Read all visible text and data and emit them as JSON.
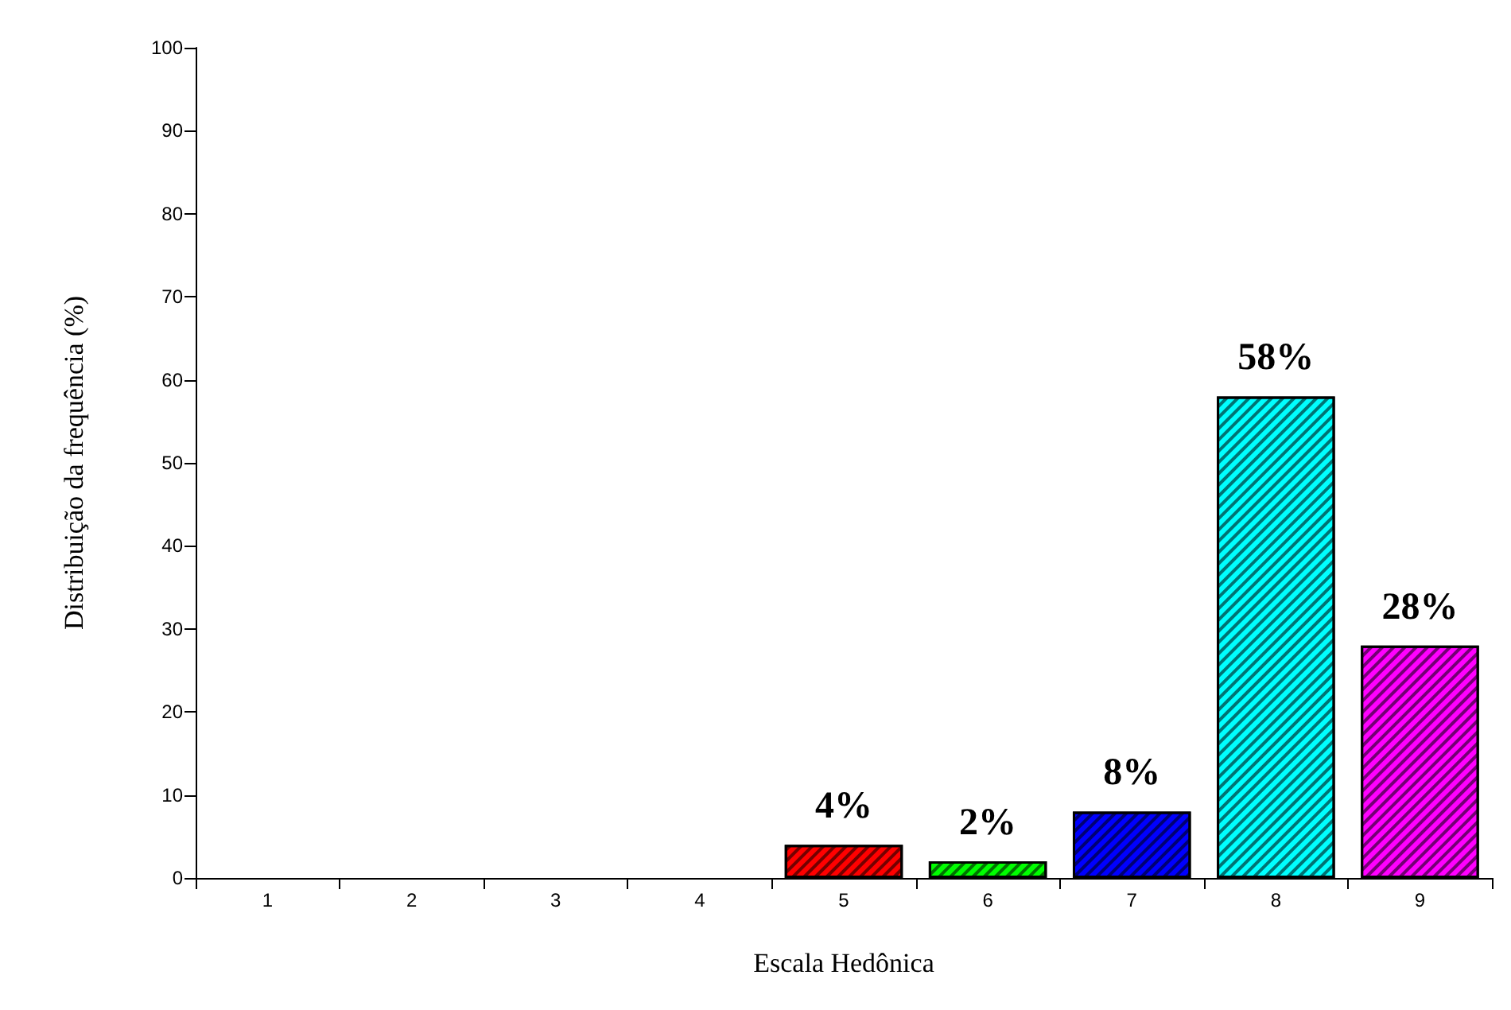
{
  "chart_data": {
    "type": "bar",
    "xlabel": "Escala Hedônica",
    "ylabel": "Distribuição da frequência (%)",
    "categories": [
      "1",
      "2",
      "3",
      "4",
      "5",
      "6",
      "7",
      "8",
      "9"
    ],
    "values": [
      null,
      null,
      null,
      null,
      4,
      2,
      8,
      58,
      28
    ],
    "colors": [
      null,
      null,
      null,
      null,
      "#ff0000",
      "#00ff00",
      "#0000ff",
      "#00ffff",
      "#ff00ff"
    ],
    "value_labels": [
      null,
      null,
      null,
      null,
      "4%",
      "2%",
      "8%",
      "58%",
      "28%"
    ],
    "ylim": [
      0,
      100
    ],
    "yticks": [
      0,
      10,
      20,
      30,
      40,
      50,
      60,
      70,
      80,
      90,
      100
    ],
    "grid": false
  }
}
